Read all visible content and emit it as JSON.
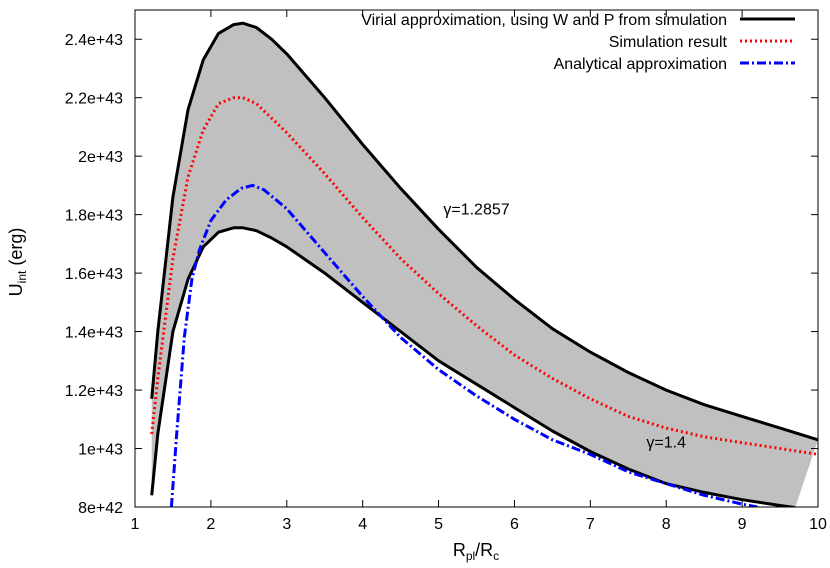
{
  "chart_data": {
    "type": "line",
    "xlabel": {
      "main": "R",
      "sub1": "pl",
      "mid": "/R",
      "sub2": "c"
    },
    "ylabel": {
      "main": "U",
      "sub": "int",
      "rest": " (erg)"
    },
    "xlim": [
      1,
      10
    ],
    "ylim": [
      8e+42,
      2.5e+43
    ],
    "x_ticks": [
      1,
      2,
      3,
      4,
      5,
      6,
      7,
      8,
      9,
      10
    ],
    "x_tick_labels": [
      "1",
      "2",
      "3",
      "4",
      "5",
      "6",
      "7",
      "8",
      "9",
      "10"
    ],
    "y_ticks": [
      8e+42,
      1e+43,
      1.2e+43,
      1.4e+43,
      1.6e+43,
      1.8e+43,
      2e+43,
      2.2e+43,
      2.4e+43
    ],
    "y_tick_labels": [
      "8e+42",
      "1e+43",
      "1.2e+43",
      "1.4e+43",
      "1.6e+43",
      "1.8e+43",
      "2e+43",
      "2.2e+43",
      "2.4e+43"
    ],
    "grid": false,
    "legend_position": "top-right",
    "band": {
      "fill_color": "#c0c0c0",
      "lower_series": 1,
      "upper_series": 0
    },
    "series": [
      {
        "name": "Virial approximation, using W and P from simulation",
        "style": "solid",
        "color": "#000000",
        "legend": true,
        "x": [
          1.22,
          1.3,
          1.5,
          1.7,
          1.9,
          2.1,
          2.3,
          2.42,
          2.6,
          2.8,
          3.0,
          3.5,
          4.0,
          4.5,
          5.0,
          5.5,
          6.0,
          6.5,
          7.0,
          7.5,
          8.0,
          8.5,
          9.0,
          9.5,
          10.0
        ],
        "y": [
          1.17e+43,
          1.4e+43,
          1.86e+43,
          2.16e+43,
          2.33e+43,
          2.42e+43,
          2.45e+43,
          2.455e+43,
          2.44e+43,
          2.4e+43,
          2.35e+43,
          2.2e+43,
          2.04e+43,
          1.89e+43,
          1.75e+43,
          1.62e+43,
          1.51e+43,
          1.41e+43,
          1.33e+43,
          1.26e+43,
          1.2e+43,
          1.15e+43,
          1.11e+43,
          1.07e+43,
          1.03e+43
        ]
      },
      {
        "name": "",
        "style": "solid",
        "color": "#000000",
        "legend": false,
        "x": [
          1.22,
          1.3,
          1.5,
          1.7,
          1.9,
          2.1,
          2.3,
          2.42,
          2.6,
          2.8,
          3.0,
          3.5,
          4.0,
          4.5,
          5.0,
          5.5,
          6.0,
          6.5,
          7.0,
          7.5,
          8.0,
          8.5,
          9.0,
          9.5,
          9.7
        ],
        "y": [
          8.4e+42,
          1.05e+43,
          1.4e+43,
          1.58e+43,
          1.69e+43,
          1.74e+43,
          1.755e+43,
          1.755e+43,
          1.745e+43,
          1.72e+43,
          1.69e+43,
          1.6e+43,
          1.5e+43,
          1.4e+43,
          1.3e+43,
          1.22e+43,
          1.14e+43,
          1.06e+43,
          9.9e+42,
          9.3e+42,
          8.8e+42,
          8.5e+42,
          8.25e+42,
          8.05e+42,
          7.98e+42
        ]
      },
      {
        "name": "Simulation result",
        "style": "dotted",
        "color": "#ff0000",
        "legend": true,
        "x": [
          1.22,
          1.3,
          1.5,
          1.7,
          1.9,
          2.1,
          2.3,
          2.42,
          2.6,
          2.8,
          3.0,
          3.5,
          4.0,
          4.5,
          5.0,
          5.5,
          6.0,
          6.5,
          7.0,
          7.5,
          8.0,
          8.5,
          9.0,
          9.5,
          10.0
        ],
        "y": [
          1.05e+43,
          1.24e+43,
          1.65e+43,
          1.93e+43,
          2.09e+43,
          2.18e+43,
          2.2e+43,
          2.2e+43,
          2.18e+43,
          2.13e+43,
          2.08e+43,
          1.94e+43,
          1.79e+43,
          1.65e+43,
          1.53e+43,
          1.42e+43,
          1.32e+43,
          1.24e+43,
          1.17e+43,
          1.11e+43,
          1.07e+43,
          1.04e+43,
          1.02e+43,
          1e+43,
          9.8e+42
        ]
      },
      {
        "name": "Analytical approximation",
        "style": "dashdot",
        "color": "#0000ff",
        "legend": true,
        "x": [
          1.48,
          1.55,
          1.65,
          1.75,
          1.85,
          2.0,
          2.2,
          2.4,
          2.55,
          2.7,
          3.0,
          3.5,
          4.0,
          4.5,
          5.0,
          5.5,
          6.0,
          6.5,
          7.0,
          7.5,
          8.0,
          8.5,
          9.0,
          9.2
        ],
        "y": [
          8e+42,
          1.05e+43,
          1.38e+43,
          1.58e+43,
          1.68e+43,
          1.78e+43,
          1.85e+43,
          1.89e+43,
          1.9e+43,
          1.885e+43,
          1.82e+43,
          1.67e+43,
          1.52e+43,
          1.38e+43,
          1.27e+43,
          1.18e+43,
          1.1e+43,
          1.03e+43,
          9.8e+42,
          9.2e+42,
          8.8e+42,
          8.4e+42,
          8.1e+42,
          8e+42
        ]
      }
    ],
    "annotations": [
      {
        "text": "γ=1.2857",
        "x": 5.5,
        "y": 1.8e+43
      },
      {
        "text": "γ=1.4",
        "x": 8.0,
        "y": 1.003e+43
      }
    ]
  }
}
